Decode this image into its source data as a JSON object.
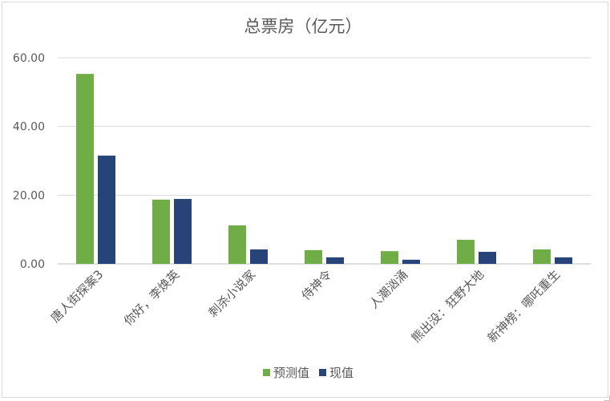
{
  "chart_data": {
    "type": "bar",
    "title": "总票房（亿元）",
    "categories": [
      "唐人街探案3",
      "你好，李焕英",
      "刺杀小说家",
      "侍神令",
      "人潮汹涌",
      "熊出没：狂野大地",
      "新神榜：哪吒重生"
    ],
    "series": [
      {
        "name": "预测值",
        "color": "#70ad47",
        "values": [
          55.3,
          18.7,
          11.2,
          4.0,
          3.7,
          7.0,
          4.2
        ]
      },
      {
        "name": "现值",
        "color": "#264478",
        "values": [
          31.5,
          18.9,
          4.2,
          1.9,
          1.2,
          3.5,
          1.9
        ]
      }
    ],
    "y_ticks": [
      "0.00",
      "20.00",
      "40.00",
      "60.00"
    ],
    "ylim": [
      0,
      60
    ],
    "grid": true,
    "legend": "bottom"
  }
}
